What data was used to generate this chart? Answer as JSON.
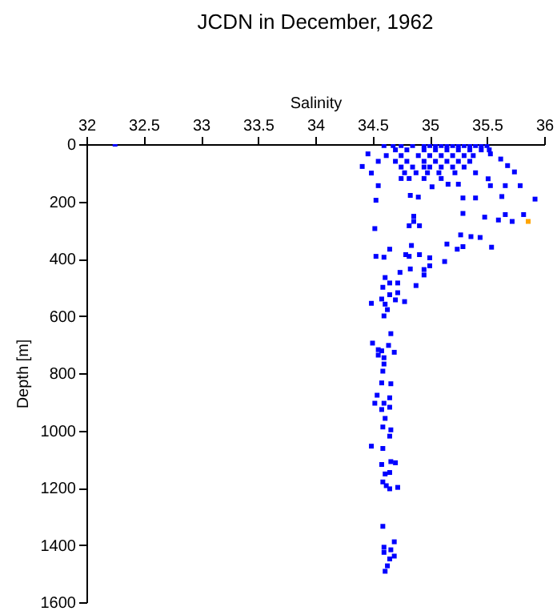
{
  "chart_data": {
    "type": "scatter",
    "title": "JCDN in December, 1962",
    "xlabel": "Salinity",
    "ylabel": "Depth [m]",
    "xlim": [
      32,
      36
    ],
    "xticks": [
      32,
      32.5,
      33,
      33.5,
      34,
      34.5,
      35,
      35.5,
      36
    ],
    "ylim": [
      1600,
      0
    ],
    "yticks": [
      0,
      200,
      400,
      600,
      800,
      1000,
      1200,
      1400,
      1600
    ],
    "marker": "square",
    "grid": false,
    "series": [
      {
        "color": "#0000ff",
        "x": [
          32.25,
          34.6,
          34.68,
          34.75,
          34.85,
          34.95,
          35.0,
          35.05,
          35.1,
          35.15,
          35.2,
          35.25,
          35.3,
          35.35,
          35.4,
          35.45,
          35.5,
          34.7,
          34.8,
          34.95,
          35.05,
          35.15,
          35.25,
          35.35,
          35.45,
          35.52,
          34.62,
          34.75,
          34.9,
          35.0,
          35.1,
          35.2,
          35.3,
          35.38,
          34.55,
          34.7,
          34.8,
          34.95,
          35.05,
          35.15,
          35.25,
          35.35,
          34.75,
          34.85,
          34.95,
          35.0,
          35.1,
          35.2,
          35.3,
          34.78,
          34.88,
          34.98,
          35.08,
          35.22,
          35.4,
          34.75,
          34.82,
          34.95,
          35.1,
          34.46,
          34.41,
          34.49,
          34.55,
          34.53,
          34.83,
          34.9,
          35.02,
          35.16,
          35.25,
          35.29,
          35.4,
          35.53,
          35.63,
          35.66,
          35.79,
          35.92,
          35.74,
          35.68,
          35.62,
          35.53,
          35.51,
          34.86,
          34.86,
          34.82,
          34.91,
          35.29,
          35.48,
          35.6,
          35.66,
          35.72,
          35.82,
          35.27,
          35.36,
          35.44,
          35.54,
          35.29,
          35.24,
          35.15,
          34.84,
          34.82,
          34.79,
          34.91,
          35.0,
          35.13,
          34.95,
          35.0,
          34.83,
          34.74,
          34.65,
          34.53,
          34.6,
          34.52,
          34.61,
          34.65,
          34.72,
          34.59,
          34.88,
          34.95,
          34.72,
          34.65,
          34.78,
          34.7,
          34.58,
          34.49,
          34.61,
          34.63,
          34.6,
          34.66,
          34.5,
          34.64,
          34.55,
          34.58,
          34.69,
          34.55,
          34.6,
          34.6,
          34.59,
          34.58,
          34.66,
          34.54,
          34.65,
          34.52,
          34.6,
          34.58,
          34.65,
          34.61,
          34.59,
          34.66,
          34.65,
          34.49,
          34.59,
          34.66,
          34.58,
          34.7,
          34.61,
          34.65,
          34.59,
          34.62,
          34.65,
          34.72,
          34.59,
          34.69,
          34.6,
          34.66,
          34.6,
          34.69,
          34.65,
          34.63,
          34.61
        ],
        "values": [
          0,
          5,
          5,
          5,
          5,
          5,
          5,
          5,
          5,
          5,
          5,
          5,
          5,
          5,
          5,
          5,
          5,
          20,
          20,
          20,
          20,
          20,
          20,
          20,
          20,
          20,
          40,
          40,
          40,
          40,
          40,
          40,
          40,
          40,
          60,
          60,
          60,
          60,
          60,
          60,
          60,
          60,
          80,
          80,
          80,
          80,
          80,
          80,
          80,
          100,
          100,
          100,
          100,
          100,
          100,
          120,
          120,
          120,
          120,
          34,
          78,
          101,
          145,
          196,
          179,
          185,
          149,
          140,
          140,
          188,
          188,
          145,
          183,
          145,
          145,
          192,
          97,
          75,
          52,
          34,
          121,
          252,
          270,
          285,
          285,
          242,
          255,
          265,
          246,
          270,
          246,
          317,
          323,
          326,
          360,
          358,
          367,
          349,
          354,
          392,
          386,
          386,
          397,
          410,
          438,
          425,
          436,
          448,
          367,
          392,
          395,
          295,
          466,
          485,
          485,
          500,
          494,
          457,
          519,
          526,
          550,
          544,
          541,
          556,
          559,
          578,
          600,
          662,
          695,
          703,
          718,
          722,
          727,
          737,
          746,
          768,
          793,
          834,
          837,
          877,
          886,
          905,
          905,
          927,
          919,
          958,
          988,
          998,
          1020,
          1055,
          1063,
          1109,
          1119,
          1113,
          1152,
          1147,
          1180,
          1193,
          1204,
          1199,
          1335,
          1389,
          1408,
          1417,
          1426,
          1439,
          1449,
          1473,
          1492
        ]
      },
      {
        "color": "#ffa500",
        "x": [
          35.86
        ],
        "values": [
          270
        ]
      }
    ]
  }
}
